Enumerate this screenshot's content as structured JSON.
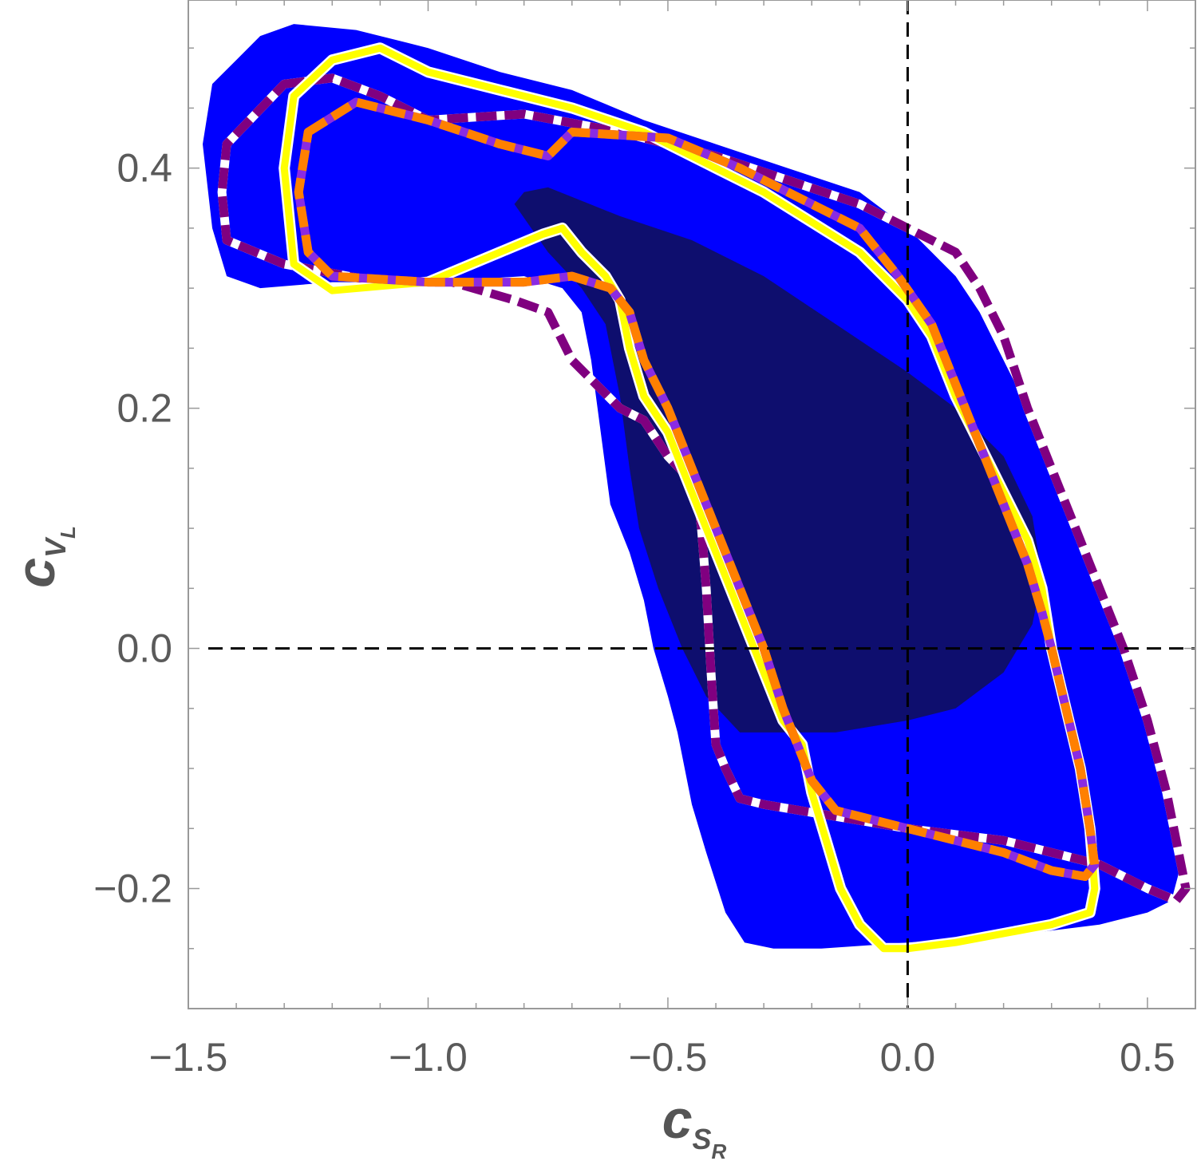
{
  "chart_data": {
    "type": "contour",
    "title": "",
    "xlabel": {
      "main": "c",
      "sub": "S",
      "subsub": "R"
    },
    "ylabel": {
      "main": "c",
      "sub": "V",
      "subsub": "L"
    },
    "xlim": [
      -1.5,
      0.6
    ],
    "ylim": [
      -0.3,
      0.54
    ],
    "x_ticks": [
      {
        "value": -1.5,
        "label": "−1.5"
      },
      {
        "value": -1.0,
        "label": "−1.0"
      },
      {
        "value": -0.5,
        "label": "−0.5"
      },
      {
        "value": 0.0,
        "label": "0.0"
      },
      {
        "value": 0.5,
        "label": "0.5"
      }
    ],
    "y_ticks": [
      {
        "value": -0.2,
        "label": "−0.2"
      },
      {
        "value": 0.0,
        "label": "0.0"
      },
      {
        "value": 0.2,
        "label": "0.2"
      },
      {
        "value": 0.4,
        "label": "0.4"
      }
    ],
    "x_minor_step": 0.1,
    "y_minor_step": 0.05,
    "reference_lines": [
      {
        "axis": "x",
        "value": 0.0,
        "style": "dashed",
        "color": "#000000"
      },
      {
        "axis": "y",
        "value": 0.0,
        "style": "dashed",
        "color": "#000000"
      }
    ],
    "regions": [
      {
        "style": "filled",
        "color": "#0000ff",
        "points": [
          [
            -1.45,
            0.47
          ],
          [
            -1.4,
            0.49
          ],
          [
            -1.35,
            0.51
          ],
          [
            -1.28,
            0.52
          ],
          [
            -1.15,
            0.515
          ],
          [
            -1.0,
            0.5
          ],
          [
            -0.85,
            0.48
          ],
          [
            -0.7,
            0.465
          ],
          [
            -0.55,
            0.44
          ],
          [
            -0.4,
            0.42
          ],
          [
            -0.25,
            0.4
          ],
          [
            -0.1,
            0.38
          ],
          [
            0.0,
            0.35
          ],
          [
            0.05,
            0.33
          ],
          [
            0.1,
            0.31
          ],
          [
            0.15,
            0.28
          ],
          [
            0.2,
            0.24
          ],
          [
            0.25,
            0.2
          ],
          [
            0.3,
            0.15
          ],
          [
            0.35,
            0.1
          ],
          [
            0.4,
            0.05
          ],
          [
            0.45,
            0.0
          ],
          [
            0.5,
            -0.07
          ],
          [
            0.55,
            -0.14
          ],
          [
            0.57,
            -0.18
          ],
          [
            0.55,
            -0.21
          ],
          [
            0.5,
            -0.22
          ],
          [
            0.4,
            -0.23
          ],
          [
            0.2,
            -0.24
          ],
          [
            0.0,
            -0.245
          ],
          [
            -0.18,
            -0.25
          ],
          [
            -0.28,
            -0.25
          ],
          [
            -0.34,
            -0.245
          ],
          [
            -0.38,
            -0.22
          ],
          [
            -0.42,
            -0.17
          ],
          [
            -0.45,
            -0.13
          ],
          [
            -0.48,
            -0.07
          ],
          [
            -0.5,
            -0.04
          ],
          [
            -0.53,
            0.0
          ],
          [
            -0.55,
            0.04
          ],
          [
            -0.58,
            0.08
          ],
          [
            -0.62,
            0.12
          ],
          [
            -0.64,
            0.18
          ],
          [
            -0.66,
            0.24
          ],
          [
            -0.68,
            0.28
          ],
          [
            -0.72,
            0.3
          ],
          [
            -0.8,
            0.31
          ],
          [
            -1.0,
            0.305
          ],
          [
            -1.2,
            0.305
          ],
          [
            -1.35,
            0.3
          ],
          [
            -1.42,
            0.31
          ],
          [
            -1.45,
            0.35
          ],
          [
            -1.47,
            0.42
          ]
        ]
      },
      {
        "style": "filled",
        "color": "#0e0e6e",
        "points": [
          [
            -0.8,
            0.38
          ],
          [
            -0.75,
            0.384
          ],
          [
            -0.6,
            0.36
          ],
          [
            -0.45,
            0.34
          ],
          [
            -0.3,
            0.31
          ],
          [
            -0.15,
            0.27
          ],
          [
            0.0,
            0.23
          ],
          [
            0.1,
            0.2
          ],
          [
            0.2,
            0.16
          ],
          [
            0.26,
            0.11
          ],
          [
            0.28,
            0.06
          ],
          [
            0.26,
            0.02
          ],
          [
            0.2,
            -0.02
          ],
          [
            0.1,
            -0.05
          ],
          [
            0.0,
            -0.06
          ],
          [
            -0.15,
            -0.07
          ],
          [
            -0.3,
            -0.07
          ],
          [
            -0.35,
            -0.07
          ],
          [
            -0.42,
            -0.04
          ],
          [
            -0.47,
            0.0
          ],
          [
            -0.52,
            0.05
          ],
          [
            -0.56,
            0.1
          ],
          [
            -0.58,
            0.15
          ],
          [
            -0.6,
            0.21
          ],
          [
            -0.63,
            0.27
          ],
          [
            -0.68,
            0.3
          ],
          [
            -0.75,
            0.33
          ],
          [
            -0.82,
            0.37
          ]
        ]
      },
      {
        "style": "dashed",
        "color": "#800080",
        "gap_color": "#ffffff",
        "points": [
          [
            -1.3,
            0.47
          ],
          [
            -1.2,
            0.475
          ],
          [
            -1.1,
            0.46
          ],
          [
            -1.0,
            0.44
          ],
          [
            -0.8,
            0.445
          ],
          [
            -0.6,
            0.43
          ],
          [
            -0.4,
            0.41
          ],
          [
            -0.25,
            0.39
          ],
          [
            -0.1,
            0.37
          ],
          [
            0.0,
            0.35
          ],
          [
            0.1,
            0.33
          ],
          [
            0.15,
            0.3
          ],
          [
            0.2,
            0.26
          ],
          [
            0.25,
            0.2
          ],
          [
            0.3,
            0.15
          ],
          [
            0.35,
            0.1
          ],
          [
            0.4,
            0.05
          ],
          [
            0.45,
            0.0
          ],
          [
            0.5,
            -0.06
          ],
          [
            0.54,
            -0.12
          ],
          [
            0.57,
            -0.18
          ],
          [
            0.58,
            -0.2
          ],
          [
            0.56,
            -0.21
          ],
          [
            0.5,
            -0.2
          ],
          [
            0.4,
            -0.18
          ],
          [
            0.2,
            -0.16
          ],
          [
            0.0,
            -0.15
          ],
          [
            -0.15,
            -0.14
          ],
          [
            -0.3,
            -0.13
          ],
          [
            -0.35,
            -0.125
          ],
          [
            -0.38,
            -0.1
          ],
          [
            -0.4,
            -0.08
          ],
          [
            -0.41,
            -0.02
          ],
          [
            -0.42,
            0.05
          ],
          [
            -0.43,
            0.1
          ],
          [
            -0.44,
            0.135
          ],
          [
            -0.5,
            0.16
          ],
          [
            -0.55,
            0.19
          ],
          [
            -0.6,
            0.2
          ],
          [
            -0.65,
            0.22
          ],
          [
            -0.7,
            0.24
          ],
          [
            -0.75,
            0.28
          ],
          [
            -0.82,
            0.29
          ],
          [
            -0.95,
            0.305
          ],
          [
            -1.1,
            0.305
          ],
          [
            -1.3,
            0.32
          ],
          [
            -1.42,
            0.34
          ],
          [
            -1.43,
            0.38
          ],
          [
            -1.42,
            0.42
          ]
        ]
      },
      {
        "style": "solid",
        "color": "#ffff00",
        "halo_color": "#ffffff",
        "points": [
          [
            -1.28,
            0.46
          ],
          [
            -1.2,
            0.49
          ],
          [
            -1.1,
            0.5
          ],
          [
            -1.0,
            0.48
          ],
          [
            -0.85,
            0.465
          ],
          [
            -0.7,
            0.45
          ],
          [
            -0.55,
            0.43
          ],
          [
            -0.4,
            0.4
          ],
          [
            -0.3,
            0.38
          ],
          [
            -0.18,
            0.35
          ],
          [
            -0.1,
            0.33
          ],
          [
            -0.05,
            0.31
          ],
          [
            0.0,
            0.29
          ],
          [
            0.05,
            0.26
          ],
          [
            0.1,
            0.21
          ],
          [
            0.15,
            0.17
          ],
          [
            0.2,
            0.13
          ],
          [
            0.25,
            0.09
          ],
          [
            0.28,
            0.05
          ],
          [
            0.3,
            0.0
          ],
          [
            0.33,
            -0.05
          ],
          [
            0.36,
            -0.1
          ],
          [
            0.38,
            -0.15
          ],
          [
            0.39,
            -0.2
          ],
          [
            0.38,
            -0.22
          ],
          [
            0.3,
            -0.23
          ],
          [
            0.1,
            -0.245
          ],
          [
            0.0,
            -0.25
          ],
          [
            -0.05,
            -0.25
          ],
          [
            -0.1,
            -0.23
          ],
          [
            -0.14,
            -0.2
          ],
          [
            -0.17,
            -0.16
          ],
          [
            -0.2,
            -0.12
          ],
          [
            -0.22,
            -0.08
          ],
          [
            -0.26,
            -0.06
          ],
          [
            -0.3,
            -0.02
          ],
          [
            -0.35,
            0.03
          ],
          [
            -0.4,
            0.08
          ],
          [
            -0.45,
            0.13
          ],
          [
            -0.5,
            0.18
          ],
          [
            -0.55,
            0.21
          ],
          [
            -0.58,
            0.25
          ],
          [
            -0.6,
            0.29
          ],
          [
            -0.63,
            0.31
          ],
          [
            -0.68,
            0.33
          ],
          [
            -0.72,
            0.35
          ],
          [
            -0.76,
            0.345
          ],
          [
            -0.85,
            0.33
          ],
          [
            -1.0,
            0.305
          ],
          [
            -1.2,
            0.298
          ],
          [
            -1.28,
            0.32
          ],
          [
            -1.3,
            0.4
          ]
        ]
      },
      {
        "style": "dashed",
        "color": "#ff8000",
        "gap_color": "#8a2be2",
        "points": [
          [
            -1.25,
            0.43
          ],
          [
            -1.15,
            0.455
          ],
          [
            -1.0,
            0.44
          ],
          [
            -0.85,
            0.42
          ],
          [
            -0.75,
            0.41
          ],
          [
            -0.7,
            0.43
          ],
          [
            -0.5,
            0.425
          ],
          [
            -0.35,
            0.4
          ],
          [
            -0.2,
            0.37
          ],
          [
            -0.1,
            0.35
          ],
          [
            -0.02,
            0.31
          ],
          [
            0.05,
            0.27
          ],
          [
            0.1,
            0.22
          ],
          [
            0.15,
            0.17
          ],
          [
            0.2,
            0.12
          ],
          [
            0.25,
            0.07
          ],
          [
            0.28,
            0.03
          ],
          [
            0.3,
            0.0
          ],
          [
            0.33,
            -0.05
          ],
          [
            0.36,
            -0.1
          ],
          [
            0.38,
            -0.15
          ],
          [
            0.39,
            -0.18
          ],
          [
            0.37,
            -0.19
          ],
          [
            0.3,
            -0.185
          ],
          [
            0.2,
            -0.17
          ],
          [
            0.1,
            -0.16
          ],
          [
            0.0,
            -0.15
          ],
          [
            -0.1,
            -0.14
          ],
          [
            -0.15,
            -0.135
          ],
          [
            -0.2,
            -0.11
          ],
          [
            -0.23,
            -0.08
          ],
          [
            -0.26,
            -0.05
          ],
          [
            -0.3,
            0.0
          ],
          [
            -0.35,
            0.05
          ],
          [
            -0.4,
            0.1
          ],
          [
            -0.45,
            0.15
          ],
          [
            -0.5,
            0.2
          ],
          [
            -0.55,
            0.24
          ],
          [
            -0.58,
            0.28
          ],
          [
            -0.62,
            0.3
          ],
          [
            -0.7,
            0.31
          ],
          [
            -0.8,
            0.305
          ],
          [
            -1.0,
            0.305
          ],
          [
            -1.2,
            0.31
          ],
          [
            -1.25,
            0.33
          ],
          [
            -1.27,
            0.38
          ]
        ]
      }
    ]
  }
}
